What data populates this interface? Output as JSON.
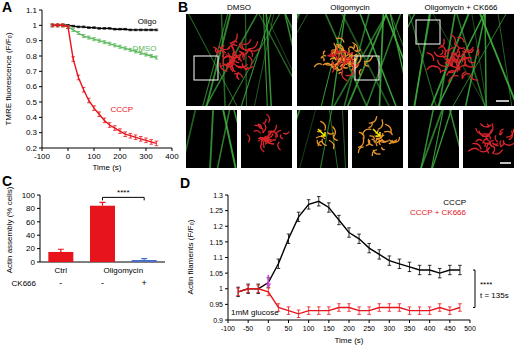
{
  "chart_data": [
    {
      "type": "line",
      "title": "A",
      "x_label": "Time (s)",
      "y_label": "TMRE fluorescence (F/F₀)",
      "x": [
        -60,
        -40,
        -20,
        0,
        20,
        40,
        60,
        80,
        100,
        120,
        140,
        160,
        180,
        200,
        220,
        240,
        260,
        280,
        300,
        320,
        340
      ],
      "series": [
        {
          "name": "Oligo",
          "color": "#000000",
          "values": [
            1,
            1,
            1,
            1,
            0.995,
            0.99,
            0.99,
            0.985,
            0.985,
            0.98,
            0.98,
            0.98,
            0.975,
            0.975,
            0.975,
            0.97,
            0.97,
            0.97,
            0.97,
            0.97,
            0.97
          ],
          "errors": [
            0.005,
            0.005,
            0.005,
            0.005,
            0.005,
            0.005,
            0.005,
            0.005,
            0.005,
            0.005,
            0.005,
            0.005,
            0.005,
            0.005,
            0.005,
            0.005,
            0.005,
            0.005,
            0.005,
            0.005,
            0.005
          ]
        },
        {
          "name": "DMSO",
          "color": "#5cb85c",
          "values": [
            1,
            1,
            1,
            0.99,
            0.97,
            0.95,
            0.93,
            0.92,
            0.91,
            0.9,
            0.89,
            0.88,
            0.87,
            0.86,
            0.85,
            0.84,
            0.83,
            0.82,
            0.81,
            0.8,
            0.79
          ],
          "errors": [
            0.01,
            0.01,
            0.01,
            0.01,
            0.01,
            0.01,
            0.01,
            0.01,
            0.01,
            0.01,
            0.01,
            0.01,
            0.01,
            0.01,
            0.01,
            0.01,
            0.01,
            0.01,
            0.01,
            0.01,
            0.01
          ]
        },
        {
          "name": "CCCP",
          "color": "#e8141b",
          "values": [
            1,
            1,
            1,
            0.99,
            0.78,
            0.66,
            0.58,
            0.51,
            0.46,
            0.42,
            0.38,
            0.35,
            0.33,
            0.31,
            0.29,
            0.28,
            0.27,
            0.26,
            0.25,
            0.24,
            0.23
          ],
          "errors": [
            0.01,
            0.01,
            0.01,
            0.01,
            0.015,
            0.015,
            0.015,
            0.015,
            0.015,
            0.015,
            0.015,
            0.015,
            0.015,
            0.015,
            0.015,
            0.015,
            0.015,
            0.015,
            0.015,
            0.015,
            0.015
          ]
        }
      ],
      "xlim": [
        -100,
        400
      ],
      "xticks": [
        -100,
        0,
        100,
        200,
        300,
        400
      ],
      "ylim": [
        0.2,
        1.1
      ],
      "yticks": [
        0.2,
        0.3,
        0.4,
        0.5,
        0.6,
        0.7,
        0.8,
        0.9,
        1,
        1.1
      ]
    },
    {
      "type": "bar",
      "title": "C",
      "y_label": "Actin assembly (% cells)",
      "categories": [
        "Ctrl",
        "Oligomycin",
        null
      ],
      "values": [
        15,
        84,
        3
      ],
      "errors": [
        4,
        5,
        2
      ],
      "colors": [
        "#e8141b",
        "#e8141b",
        "#4a6fc9"
      ],
      "treatment": {
        "label": "CK666",
        "values": [
          "-",
          "-",
          "+"
        ]
      },
      "annotations": [
        {
          "text": "****"
        }
      ],
      "ylim": [
        0,
        100
      ],
      "yticks": [
        0,
        20,
        40,
        60,
        80,
        100
      ]
    },
    {
      "type": "line",
      "title": "D",
      "x_label": "Time (s)",
      "y_label": "Actin filaments (F/F₀)",
      "x": [
        -75,
        -50,
        -25,
        0,
        25,
        50,
        75,
        100,
        125,
        150,
        175,
        200,
        225,
        250,
        275,
        300,
        325,
        350,
        375,
        400,
        425,
        450,
        475
      ],
      "series": [
        {
          "name": "CCCP",
          "color": "#000000",
          "values": [
            0.99,
            1.0,
            1.0,
            1.02,
            1.08,
            1.16,
            1.23,
            1.27,
            1.28,
            1.26,
            1.22,
            1.18,
            1.16,
            1.13,
            1.11,
            1.09,
            1.08,
            1.07,
            1.06,
            1.06,
            1.05,
            1.06,
            1.06
          ],
          "errors": [
            0.015,
            0.015,
            0.015,
            0.015,
            0.015,
            0.015,
            0.015,
            0.015,
            0.015,
            0.015,
            0.015,
            0.015,
            0.015,
            0.015,
            0.015,
            0.015,
            0.015,
            0.015,
            0.015,
            0.015,
            0.015,
            0.015,
            0.015
          ]
        },
        {
          "name": "CCCP + CK666",
          "color": "#e8141b",
          "values": [
            0.99,
            1.0,
            1.0,
            0.99,
            0.94,
            0.93,
            0.92,
            0.93,
            0.93,
            0.93,
            0.94,
            0.94,
            0.93,
            0.93,
            0.94,
            0.94,
            0.94,
            0.93,
            0.93,
            0.93,
            0.94,
            0.93,
            0.94
          ],
          "errors": [
            0.012,
            0.012,
            0.012,
            0.012,
            0.012,
            0.012,
            0.012,
            0.012,
            0.012,
            0.012,
            0.012,
            0.012,
            0.012,
            0.012,
            0.012,
            0.012,
            0.012,
            0.012,
            0.012,
            0.012,
            0.012,
            0.012,
            0.012
          ]
        }
      ],
      "annotations": [
        {
          "text": "1mM glucose",
          "x": 0
        },
        {
          "text": "****"
        },
        {
          "text": "t = 135s"
        }
      ],
      "legend": "top-right",
      "xlim": [
        -100,
        500
      ],
      "xticks": [
        -100,
        -50,
        0,
        50,
        100,
        150,
        200,
        250,
        300,
        350,
        400,
        450,
        500
      ],
      "ylim": [
        0.9,
        1.3
      ],
      "yticks": [
        0.9,
        0.95,
        1,
        1.05,
        1.1,
        1.15,
        1.2,
        1.25,
        1.3
      ]
    }
  ],
  "image_panel": {
    "label": "B",
    "titles": [
      "DMSO",
      "Oligomycin",
      "Oligomycin + CK666"
    ]
  }
}
